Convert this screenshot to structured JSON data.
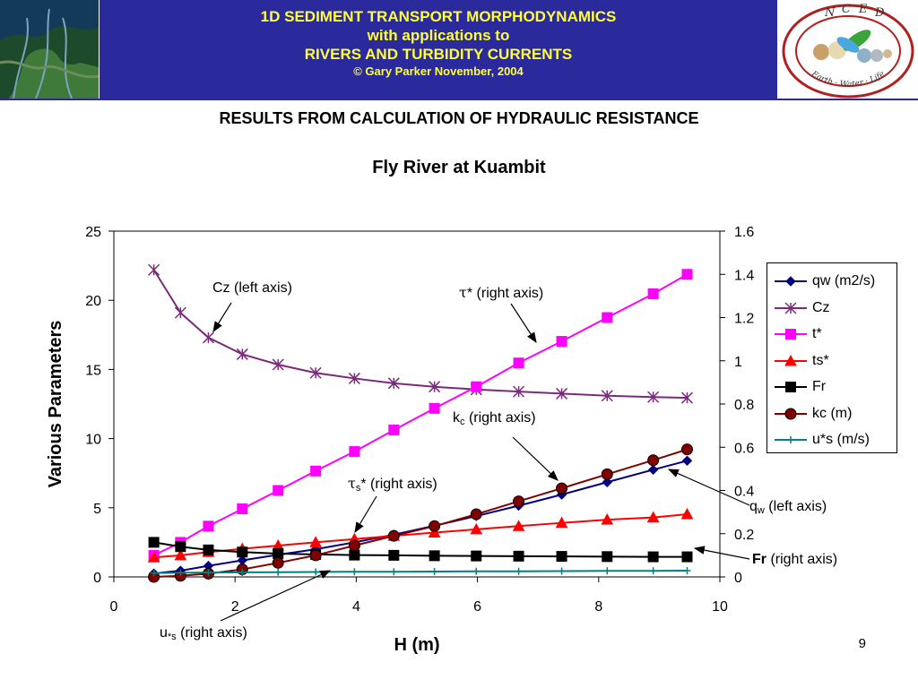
{
  "banner": {
    "line1": "1D SEDIMENT TRANSPORT MORPHODYNAMICS",
    "line2": "with applications to",
    "line3": "RIVERS AND TURBIDITY CURRENTS",
    "line4": "© Gary Parker November, 2004",
    "logo_letters": [
      "N",
      "C",
      "E",
      "D"
    ],
    "logo_motto": "Earth · Water · Life"
  },
  "slide_title": "RESULTS FROM CALCULATION OF HYDRAULIC RESISTANCE",
  "page_number": "9",
  "colors": {
    "banner_bg": "#2a2a9c",
    "banner_text": "#ffff33",
    "qw": "#000080",
    "Cz": "#7a2a7a",
    "t": "#ff00ff",
    "ts": "#ff0000",
    "Fr": "#000000",
    "kc": "#800000",
    "us": "#008080"
  },
  "chart_data": {
    "type": "line",
    "title": "Fly River at Kuambit",
    "xlabel": "H (m)",
    "ylabel": "Various Parameters",
    "xlim": [
      0,
      10
    ],
    "ylim": [
      0,
      25
    ],
    "y2lim": [
      0,
      1.6
    ],
    "xticks": [
      "0",
      "2",
      "4",
      "6",
      "8",
      "10"
    ],
    "yticks": [
      "0",
      "5",
      "10",
      "15",
      "20",
      "25"
    ],
    "y2ticks": [
      "0",
      "0.2",
      "0.4",
      "0.6",
      "0.8",
      "1",
      "1.2",
      "1.4",
      "1.6"
    ],
    "grid": false,
    "legend_position": "right",
    "x": [
      0.66,
      1.1,
      1.56,
      2.12,
      2.71,
      3.33,
      3.97,
      4.62,
      5.29,
      5.98,
      6.68,
      7.39,
      8.14,
      8.9,
      9.46
    ],
    "series": [
      {
        "name": "qw (m2/s)",
        "axis": "left",
        "marker": "diamond",
        "color": "#000080",
        "values": [
          0.25,
          0.45,
          0.8,
          1.2,
          1.6,
          2.0,
          2.5,
          3.05,
          3.7,
          4.4,
          5.15,
          5.95,
          6.85,
          7.75,
          8.4
        ]
      },
      {
        "name": "Cz",
        "axis": "left",
        "marker": "asterisk",
        "color": "#7a2a7a",
        "values": [
          22.2,
          19.1,
          17.3,
          16.1,
          15.35,
          14.75,
          14.35,
          14.0,
          13.75,
          13.55,
          13.4,
          13.25,
          13.1,
          13.0,
          12.95
        ]
      },
      {
        "name": "t*",
        "axis": "right",
        "marker": "square",
        "color": "#ff00ff",
        "values": [
          0.1,
          0.16,
          0.235,
          0.315,
          0.4,
          0.49,
          0.58,
          0.68,
          0.78,
          0.88,
          0.99,
          1.09,
          1.2,
          1.31,
          1.4
        ]
      },
      {
        "name": "ts*",
        "axis": "right",
        "marker": "triangle",
        "color": "#ff0000",
        "values": [
          0.09,
          0.1,
          0.115,
          0.13,
          0.145,
          0.16,
          0.175,
          0.19,
          0.205,
          0.22,
          0.235,
          0.25,
          0.265,
          0.275,
          0.29
        ]
      },
      {
        "name": "Fr",
        "axis": "right",
        "marker": "square",
        "color": "#000000",
        "values": [
          0.16,
          0.14,
          0.125,
          0.115,
          0.108,
          0.104,
          0.101,
          0.1,
          0.098,
          0.097,
          0.096,
          0.095,
          0.094,
          0.093,
          0.093
        ]
      },
      {
        "name": "kc (m)",
        "axis": "right",
        "marker": "circle",
        "color": "#800000",
        "values": [
          0.0,
          0.005,
          0.015,
          0.035,
          0.065,
          0.1,
          0.145,
          0.19,
          0.235,
          0.29,
          0.35,
          0.41,
          0.475,
          0.54,
          0.59
        ]
      },
      {
        "name": "u*s (m/s)",
        "axis": "right",
        "marker": "plus",
        "color": "#008080",
        "values": [
          0.018,
          0.019,
          0.02,
          0.021,
          0.022,
          0.023,
          0.024,
          0.024,
          0.025,
          0.026,
          0.026,
          0.027,
          0.028,
          0.028,
          0.029
        ]
      }
    ],
    "annotations": [
      {
        "id": "cz",
        "parts": [
          {
            "t": "Cz (left axis)"
          }
        ]
      },
      {
        "id": "tau",
        "parts": [
          {
            "t": "τ",
            "font": "serif"
          },
          {
            "t": "* (right axis)"
          }
        ]
      },
      {
        "id": "kc",
        "parts": [
          {
            "t": "k"
          },
          {
            "t": "c",
            "sub": true
          },
          {
            "t": " (right axis)"
          }
        ]
      },
      {
        "id": "taus",
        "parts": [
          {
            "t": "τ",
            "font": "serif"
          },
          {
            "t": "s",
            "sub": true
          },
          {
            "t": "* (right axis)"
          }
        ]
      },
      {
        "id": "qw",
        "parts": [
          {
            "t": "q"
          },
          {
            "t": "w",
            "sub": true
          },
          {
            "t": " (left axis)"
          }
        ]
      },
      {
        "id": "fr",
        "parts": [
          {
            "t": "Fr",
            "bold": true
          },
          {
            "t": " (right axis)"
          }
        ]
      },
      {
        "id": "us",
        "parts": [
          {
            "t": "u"
          },
          {
            "t": "*s",
            "sub": true
          },
          {
            "t": " (right axis)"
          }
        ]
      }
    ]
  }
}
